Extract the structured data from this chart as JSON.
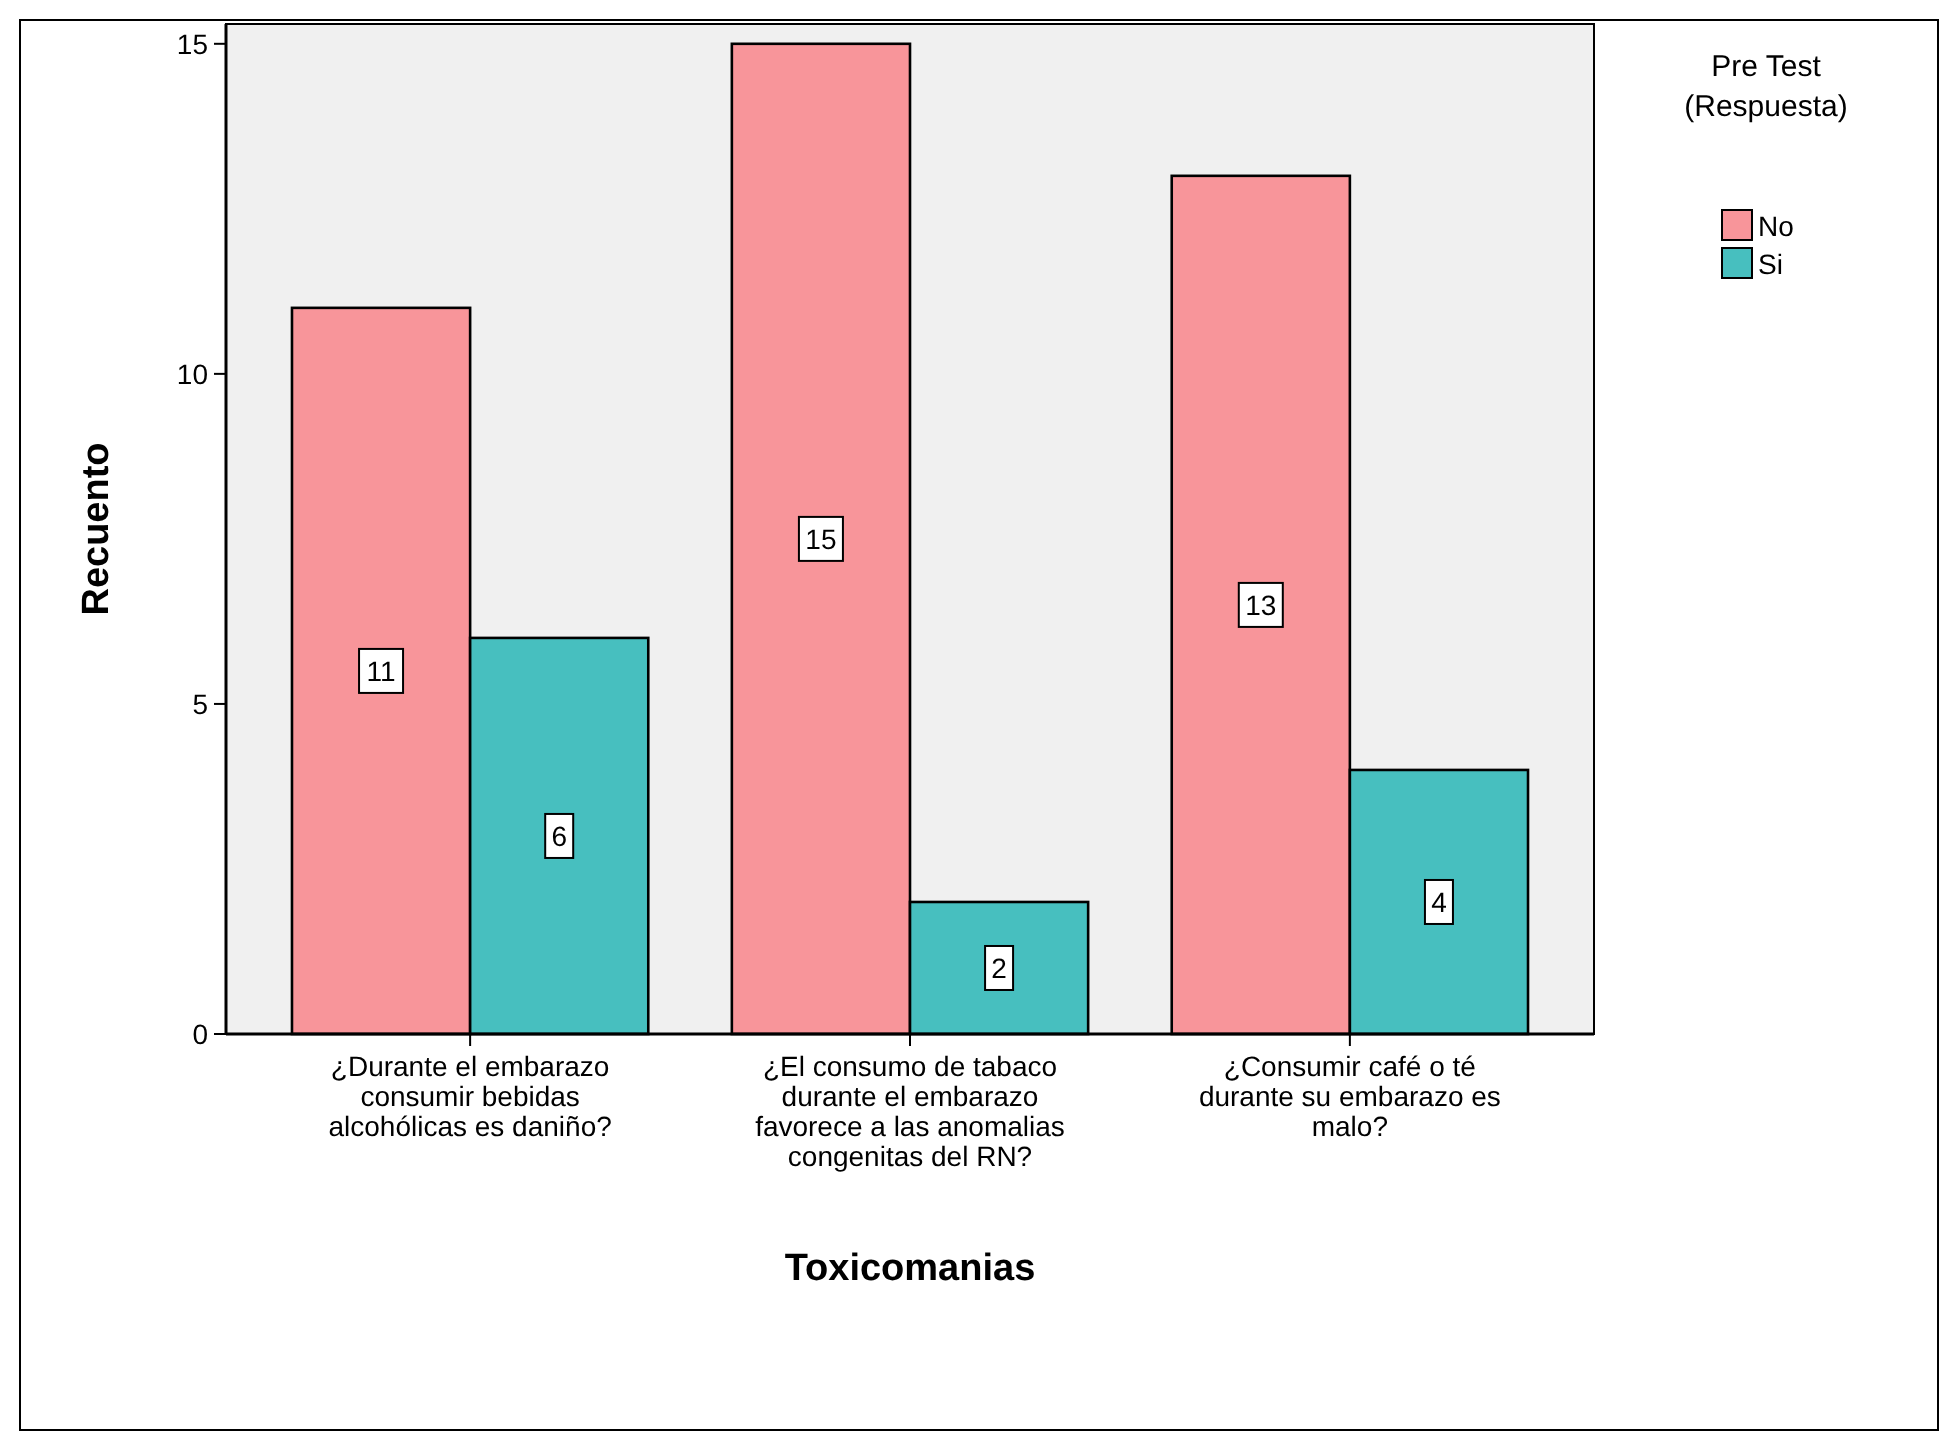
{
  "chart_data": {
    "type": "bar",
    "xlabel": "Toxicomanias",
    "ylabel": "Recuento",
    "legend_title": "Pre Test (Respuesta)",
    "categories": [
      "¿Durante el embarazo consumir bebidas alcohólicas es daniño?",
      "¿El consumo de tabaco durante el embarazo favorece a las anomalias congenitas del RN?",
      "¿Consumir café o té durante su embarazo es malo?"
    ],
    "series": [
      {
        "name": "No",
        "color": "#f8959a",
        "values": [
          11,
          15,
          13
        ]
      },
      {
        "name": "Si",
        "color": "#47bfbf",
        "values": [
          6,
          2,
          4
        ]
      }
    ],
    "ylim": [
      0,
      15.3
    ],
    "yticks": [
      0,
      5,
      10,
      15
    ],
    "grid": false,
    "legend": "top right",
    "data_labels": true
  }
}
